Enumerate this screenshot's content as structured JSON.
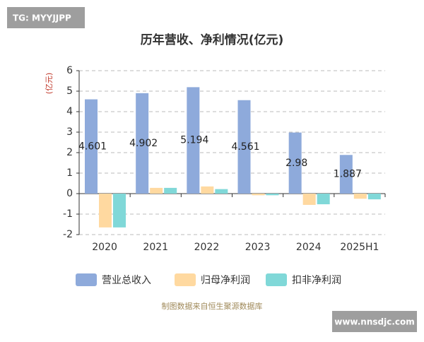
{
  "watermark_top": "TG: MYYJJPP",
  "watermark_bottom": "www.nnsdjc.com",
  "chart_data": {
    "type": "bar",
    "title": "历年营收、净利情况(亿元)",
    "y_label": "(亿元)",
    "categories": [
      "2020",
      "2021",
      "2022",
      "2023",
      "2024",
      "2025H1"
    ],
    "series": [
      {
        "name": "营业总收入",
        "color": "#8eaadb",
        "values": [
          4.601,
          4.902,
          5.194,
          4.561,
          2.98,
          1.887
        ],
        "data_labels": true
      },
      {
        "name": "归母净利润",
        "color": "#ffd9a0",
        "values": [
          -1.65,
          0.28,
          0.35,
          -0.08,
          -0.55,
          -0.25
        ]
      },
      {
        "name": "扣非净利润",
        "color": "#80d8d8",
        "values": [
          -1.65,
          0.28,
          0.22,
          -0.08,
          -0.52,
          -0.28
        ]
      }
    ],
    "ylim": [
      -2,
      6
    ],
    "yticks": [
      -2,
      -1,
      0,
      1,
      2,
      3,
      4,
      5,
      6
    ],
    "grid": true,
    "footnote": "制图数据来自恒生聚源数据库"
  }
}
